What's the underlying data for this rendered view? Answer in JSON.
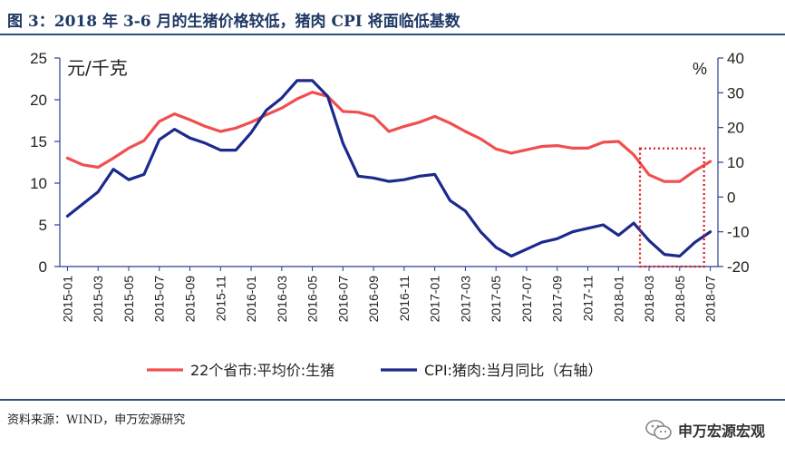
{
  "header": {
    "title": "图 3：2018 年 3-6 月的生猪价格较低，猪肉 CPI 将面临低基数"
  },
  "footer": {
    "source": "资料来源：WIND，申万宏源研究",
    "brand": "申万宏源宏观"
  },
  "chart_data": {
    "type": "line",
    "left_unit": "元/千克",
    "right_unit": "%",
    "x": [
      "2015-01",
      "2015-02",
      "2015-03",
      "2015-04",
      "2015-05",
      "2015-06",
      "2015-07",
      "2015-08",
      "2015-09",
      "2015-10",
      "2015-11",
      "2015-12",
      "2016-01",
      "2016-02",
      "2016-03",
      "2016-04",
      "2016-05",
      "2016-06",
      "2016-07",
      "2016-08",
      "2016-09",
      "2016-10",
      "2016-11",
      "2016-12",
      "2017-01",
      "2017-02",
      "2017-03",
      "2017-04",
      "2017-05",
      "2017-06",
      "2017-07",
      "2017-08",
      "2017-09",
      "2017-10",
      "2017-11",
      "2017-12",
      "2018-01",
      "2018-02",
      "2018-03",
      "2018-04",
      "2018-05",
      "2018-06",
      "2018-07"
    ],
    "x_tick_labels": [
      "2015-01",
      "2015-03",
      "2015-05",
      "2015-07",
      "2015-09",
      "2015-11",
      "2016-01",
      "2016-03",
      "2016-05",
      "2016-07",
      "2016-09",
      "2016-11",
      "2017-01",
      "2017-03",
      "2017-05",
      "2017-07",
      "2017-09",
      "2017-11",
      "2018-01",
      "2018-03",
      "2018-05",
      "2018-07"
    ],
    "ylim_left": [
      0,
      25
    ],
    "yticks_left": [
      0,
      5,
      10,
      15,
      20,
      25
    ],
    "ylim_right": [
      -20,
      40
    ],
    "yticks_right": [
      -20,
      -10,
      0,
      10,
      20,
      30,
      40
    ],
    "series": [
      {
        "name": "22个省市:平均价:生猪",
        "axis": "left",
        "color": "#f04f4f",
        "values": [
          13.0,
          12.2,
          11.9,
          13.0,
          14.2,
          15.1,
          17.4,
          18.3,
          17.6,
          16.8,
          16.2,
          16.6,
          17.3,
          18.2,
          19.0,
          20.1,
          20.9,
          20.4,
          18.6,
          18.5,
          18.0,
          16.2,
          16.8,
          17.3,
          18.0,
          17.2,
          16.2,
          15.3,
          14.1,
          13.6,
          14.0,
          14.4,
          14.5,
          14.2,
          14.2,
          14.9,
          15.0,
          13.4,
          11.0,
          10.2,
          10.2,
          11.5,
          12.6
        ]
      },
      {
        "name": "CPI:猪肉:当月同比（右轴）",
        "axis": "right",
        "color": "#1b2a8c",
        "values": [
          -5.5,
          -2.0,
          1.5,
          8.0,
          5.0,
          6.5,
          16.5,
          19.5,
          17.0,
          15.5,
          13.5,
          13.5,
          18.5,
          25.0,
          28.5,
          33.5,
          33.5,
          29.0,
          15.5,
          6.0,
          5.5,
          4.5,
          5.0,
          6.0,
          6.5,
          -1.0,
          -4.0,
          -10.0,
          -14.5,
          -17.0,
          -15.0,
          -13.0,
          -12.0,
          -10.0,
          -9.0,
          -8.0,
          -11.0,
          -7.5,
          -12.5,
          -16.5,
          -17.0,
          -13.0,
          -10.0
        ]
      }
    ],
    "highlight_box": {
      "from": "2018-03",
      "to": "2018-06"
    }
  }
}
